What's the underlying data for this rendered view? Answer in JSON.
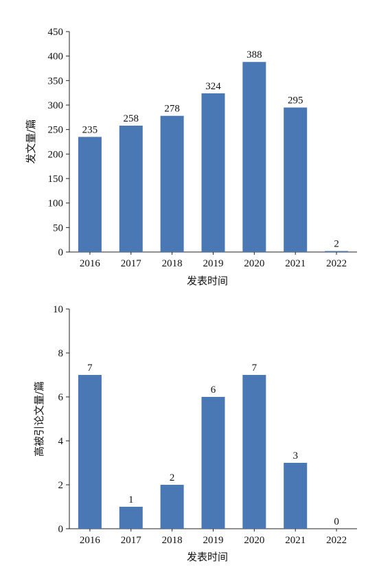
{
  "chart_data": [
    {
      "type": "bar",
      "categories": [
        "2016",
        "2017",
        "2018",
        "2019",
        "2020",
        "2021",
        "2022"
      ],
      "values": [
        235,
        258,
        278,
        324,
        388,
        295,
        2
      ],
      "xlabel": "发表时间",
      "ylabel": "发文量/篇",
      "ylim": [
        0,
        450
      ],
      "yticks": [
        0,
        50,
        100,
        150,
        200,
        250,
        300,
        350,
        400,
        450
      ],
      "bar_color": "#4a78b4",
      "grid": false,
      "legend": "none"
    },
    {
      "type": "bar",
      "categories": [
        "2016",
        "2017",
        "2018",
        "2019",
        "2020",
        "2021",
        "2022"
      ],
      "values": [
        7,
        1,
        2,
        6,
        7,
        3,
        0
      ],
      "xlabel": "发表时间",
      "ylabel": "高被引论文量/篇",
      "ylim": [
        0,
        10
      ],
      "yticks": [
        0,
        2,
        4,
        6,
        8,
        10
      ],
      "bar_color": "#4a78b4",
      "grid": false,
      "legend": "none"
    }
  ]
}
